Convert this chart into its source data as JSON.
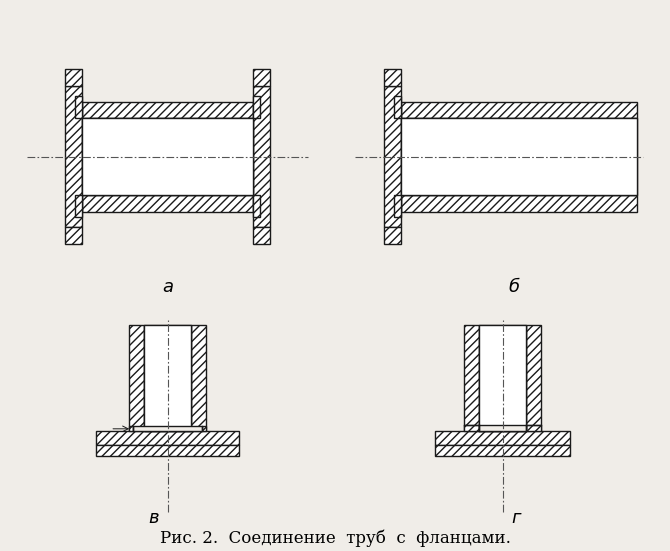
{
  "bg_color": "#f0ede8",
  "line_color": "#1a1a1a",
  "caption": "Рис. 2.  Соединение  труб  с  фланцами.",
  "caption_fontsize": 12,
  "labels": [
    "а",
    "б",
    "в",
    "г"
  ],
  "label_fontsize": 13,
  "hatch": "////"
}
